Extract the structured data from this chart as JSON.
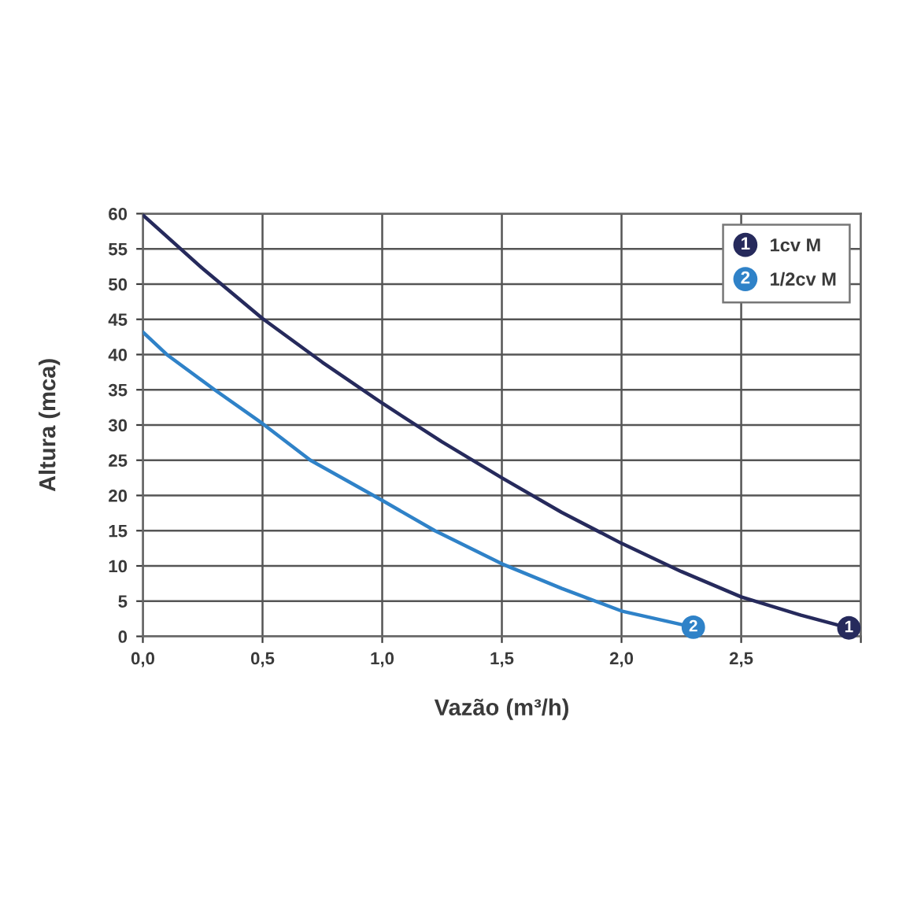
{
  "chart_data": {
    "type": "line",
    "xlabel": "Vazão (m³/h)",
    "ylabel": "Altura (mca)",
    "xlim": [
      0,
      3
    ],
    "ylim": [
      0,
      60
    ],
    "xticks": [
      {
        "value": 0,
        "label": "0,0"
      },
      {
        "value": 0.5,
        "label": "0,5"
      },
      {
        "value": 1,
        "label": "1,0"
      },
      {
        "value": 1.5,
        "label": "1,5"
      },
      {
        "value": 2,
        "label": "2,0"
      },
      {
        "value": 2.5,
        "label": "2,5"
      },
      {
        "value": 3,
        "label": null
      }
    ],
    "yticks": [
      0,
      5,
      10,
      15,
      20,
      25,
      30,
      35,
      40,
      45,
      50,
      55,
      60
    ],
    "grid": true,
    "legend": "top right",
    "series": [
      {
        "name": "1cv M",
        "color": "#262a5c",
        "x": [
          0,
          0.25,
          0.5,
          0.75,
          1.0,
          1.25,
          1.5,
          1.75,
          2.0,
          2.25,
          2.5,
          2.75,
          2.95
        ],
        "values": [
          59.8,
          52.2,
          45.1,
          38.9,
          33.1,
          27.6,
          22.5,
          17.6,
          13.2,
          9.2,
          5.6,
          3.0,
          1.2
        ]
      },
      {
        "name": "1/2cv M",
        "color": "#2f82c8",
        "x": [
          0,
          0.1,
          0.3,
          0.5,
          0.7,
          1.0,
          1.22,
          1.5,
          1.75,
          2.0,
          2.3
        ],
        "values": [
          43.2,
          40,
          35,
          30.2,
          25,
          19.3,
          15,
          10.3,
          6.8,
          3.6,
          1.3
        ]
      }
    ],
    "annotations": [
      {
        "text": "1",
        "x": 2.95,
        "y": 1.2
      },
      {
        "text": "2",
        "x": 2.3,
        "y": 1.3
      }
    ]
  }
}
